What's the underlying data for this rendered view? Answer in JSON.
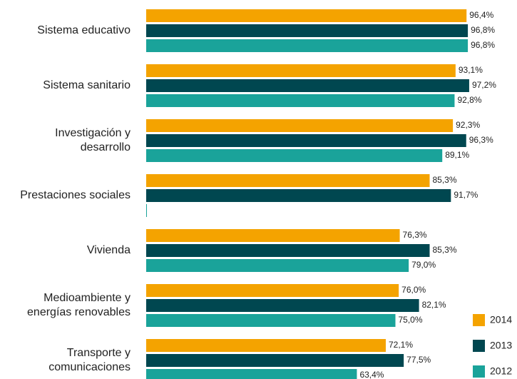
{
  "chart_data": {
    "type": "hbar",
    "categories": [
      "Sistema educativo",
      "Sistema sanitario",
      "Investigación y\ndesarrollo",
      "Prestaciones sociales",
      "Vivienda",
      "Medioambiente y\nenergías renovables",
      "Transporte y\ncomunicaciones"
    ],
    "series": [
      {
        "name": "2014",
        "color": "#f4a300",
        "values": [
          96.4,
          93.1,
          92.3,
          85.3,
          76.3,
          76.0,
          72.1
        ],
        "value_labels": [
          "96,4%",
          "93,1%",
          "92,3%",
          "85,3%",
          "76,3%",
          "76,0%",
          "72,1%"
        ]
      },
      {
        "name": "2013",
        "color": "#004750",
        "values": [
          96.8,
          97.2,
          96.3,
          91.7,
          85.3,
          82.1,
          77.5
        ],
        "value_labels": [
          "96,8%",
          "97,2%",
          "96,3%",
          "91,7%",
          "85,3%",
          "82,1%",
          "77,5%"
        ]
      },
      {
        "name": "2012",
        "color": "#1aa39a",
        "values": [
          96.8,
          92.8,
          89.1,
          0,
          79.0,
          75.0,
          63.4
        ],
        "value_labels": [
          "96,8%",
          "92,8%",
          "89,1%",
          null,
          "79,0%",
          "75,0%",
          "63,4%"
        ]
      }
    ],
    "xlim": [
      0,
      100
    ],
    "legend": "bottom-right"
  }
}
